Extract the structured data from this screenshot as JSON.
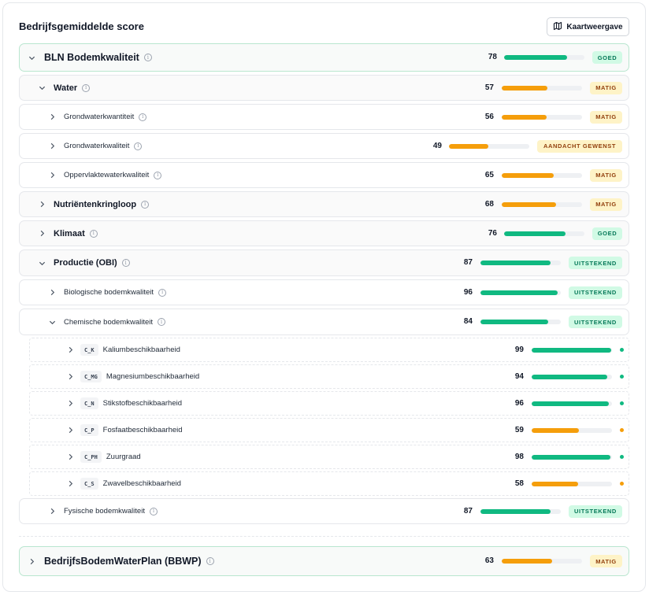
{
  "header": {
    "title": "Bedrijfsgemiddelde score",
    "map_button_label": "Kaartweergave"
  },
  "colors": {
    "green": "#10b981",
    "orange": "#f59e0b"
  },
  "info_glyph": "i",
  "rows": [
    {
      "label": "BLN Bodemkwaliteit",
      "score": "78",
      "value": 78,
      "status": "GOED",
      "level": 0,
      "expanded": true
    },
    {
      "label": "Water",
      "score": "57",
      "value": 57,
      "status": "MATIG",
      "level": 1,
      "expanded": true
    },
    {
      "label": "Grondwaterkwantiteit",
      "score": "56",
      "value": 56,
      "status": "MATIG",
      "level": 2,
      "expanded": false
    },
    {
      "label": "Grondwaterkwaliteit",
      "score": "49",
      "value": 49,
      "status": "AANDACHT GEWENST",
      "level": 2,
      "expanded": false
    },
    {
      "label": "Oppervlaktewaterkwaliteit",
      "score": "65",
      "value": 65,
      "status": "MATIG",
      "level": 2,
      "expanded": false
    },
    {
      "label": "Nutriëntenkringloop",
      "score": "68",
      "value": 68,
      "status": "MATIG",
      "level": 1,
      "expanded": false
    },
    {
      "label": "Klimaat",
      "score": "76",
      "value": 76,
      "status": "GOED",
      "level": 1,
      "expanded": false
    },
    {
      "label": "Productie (OBI)",
      "score": "87",
      "value": 87,
      "status": "UITSTEKEND",
      "level": 1,
      "expanded": true
    },
    {
      "label": "Biologische bodemkwaliteit",
      "score": "96",
      "value": 96,
      "status": "UITSTEKEND",
      "level": 2,
      "expanded": false
    },
    {
      "label": "Chemische bodemkwaliteit",
      "score": "84",
      "value": 84,
      "status": "UITSTEKEND",
      "level": 2,
      "expanded": true
    },
    {
      "code": "C_K",
      "label": "Kaliumbeschikbaarheid",
      "score": "99",
      "value": 99,
      "level": 3,
      "color": "green"
    },
    {
      "code": "C_MG",
      "label": "Magnesiumbeschikbaarheid",
      "score": "94",
      "value": 94,
      "level": 3,
      "color": "green"
    },
    {
      "code": "C_N",
      "label": "Stikstofbeschikbaarheid",
      "score": "96",
      "value": 96,
      "level": 3,
      "color": "green"
    },
    {
      "code": "C_P",
      "label": "Fosfaatbeschikbaarheid",
      "score": "59",
      "value": 59,
      "level": 3,
      "color": "orange"
    },
    {
      "code": "C_PH",
      "label": "Zuurgraad",
      "score": "98",
      "value": 98,
      "level": 3,
      "color": "green"
    },
    {
      "code": "C_S",
      "label": "Zwavelbeschikbaarheid",
      "score": "58",
      "value": 58,
      "level": 3,
      "color": "orange"
    },
    {
      "label": "Fysische bodemkwaliteit",
      "score": "87",
      "value": 87,
      "status": "UITSTEKEND",
      "level": 2,
      "expanded": false
    },
    {
      "label": "BedrijfsBodemWaterPlan (BBWP)",
      "score": "63",
      "value": 63,
      "status": "MATIG",
      "level": 0,
      "expanded": false
    }
  ]
}
